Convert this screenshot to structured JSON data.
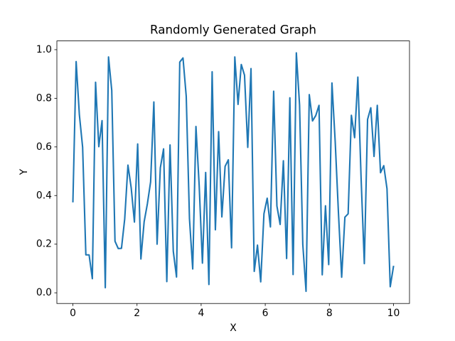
{
  "chart_data": {
    "type": "line",
    "title": "Randomly Generated Graph",
    "x_label": "X",
    "y_label": "Y",
    "x": [
      0,
      0.101,
      0.202,
      0.303,
      0.404,
      0.5051,
      0.6061,
      0.7071,
      0.8081,
      0.9091,
      1.0101,
      1.1111,
      1.2121,
      1.3131,
      1.4141,
      1.5152,
      1.6162,
      1.7172,
      1.8182,
      1.9192,
      2.0202,
      2.1212,
      2.2222,
      2.3232,
      2.4242,
      2.5253,
      2.6263,
      2.7273,
      2.8283,
      2.9293,
      3.0303,
      3.1313,
      3.2323,
      3.3333,
      3.4343,
      3.5354,
      3.6364,
      3.7374,
      3.8384,
      3.9394,
      4.0404,
      4.1414,
      4.2424,
      4.3434,
      4.4444,
      4.5455,
      4.6465,
      4.7475,
      4.8485,
      4.9495,
      5.0505,
      5.1515,
      5.2525,
      5.3535,
      5.4545,
      5.5556,
      5.6566,
      5.7576,
      5.8586,
      5.9596,
      6.0606,
      6.1616,
      6.2626,
      6.3636,
      6.4646,
      6.5657,
      6.6667,
      6.7677,
      6.8687,
      6.9697,
      7.0707,
      7.1717,
      7.2727,
      7.3737,
      7.4747,
      7.5758,
      7.6768,
      7.7778,
      7.8788,
      7.9798,
      8.0808,
      8.1818,
      8.2828,
      8.3838,
      8.4848,
      8.5859,
      8.6869,
      8.7879,
      8.8889,
      8.9899,
      9.0909,
      9.1919,
      9.2929,
      9.3939,
      9.4949,
      9.596,
      9.697,
      9.798,
      9.899,
      10
    ],
    "values": [
      0.375,
      0.951,
      0.732,
      0.599,
      0.156,
      0.156,
      0.058,
      0.866,
      0.601,
      0.708,
      0.021,
      0.97,
      0.832,
      0.212,
      0.182,
      0.183,
      0.304,
      0.525,
      0.432,
      0.291,
      0.612,
      0.139,
      0.292,
      0.366,
      0.456,
      0.785,
      0.2,
      0.514,
      0.592,
      0.046,
      0.608,
      0.171,
      0.065,
      0.949,
      0.966,
      0.808,
      0.305,
      0.098,
      0.684,
      0.44,
      0.122,
      0.495,
      0.034,
      0.909,
      0.259,
      0.663,
      0.312,
      0.52,
      0.547,
      0.185,
      0.97,
      0.775,
      0.939,
      0.895,
      0.598,
      0.922,
      0.088,
      0.196,
      0.045,
      0.325,
      0.389,
      0.271,
      0.829,
      0.357,
      0.281,
      0.543,
      0.141,
      0.802,
      0.075,
      0.987,
      0.772,
      0.199,
      0.006,
      0.815,
      0.707,
      0.729,
      0.771,
      0.074,
      0.358,
      0.116,
      0.863,
      0.623,
      0.331,
      0.064,
      0.311,
      0.325,
      0.73,
      0.638,
      0.887,
      0.472,
      0.12,
      0.713,
      0.761,
      0.561,
      0.771,
      0.494,
      0.523,
      0.428,
      0.025,
      0.108
    ],
    "color": "#1f77b4",
    "xlim": [
      -0.5,
      10.5
    ],
    "xticks": [
      0,
      2,
      4,
      6,
      8,
      10
    ],
    "ylim": [
      -0.044,
      1.036
    ],
    "yticks": [
      {
        "value": 0,
        "label": "0.0"
      },
      {
        "value": 0.2,
        "label": "0.2"
      },
      {
        "value": 0.4,
        "label": "0.4"
      },
      {
        "value": 0.6,
        "label": "0.6"
      },
      {
        "value": 0.8,
        "label": "0.8"
      },
      {
        "value": 1,
        "label": "1.0"
      }
    ],
    "grid": false
  }
}
